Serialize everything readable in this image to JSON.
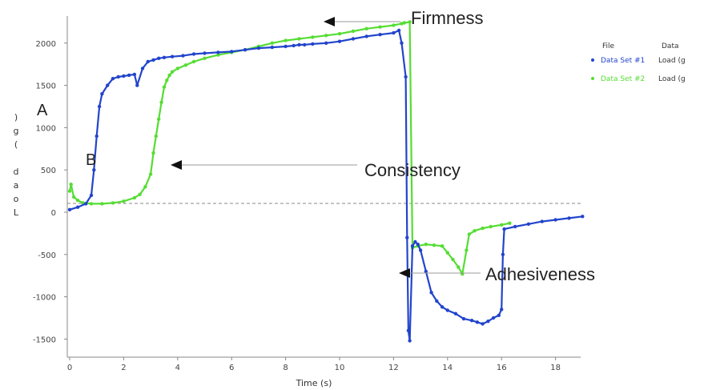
{
  "chart_data": {
    "type": "line",
    "xlabel": "Time (s)",
    "ylabel": "Load (g)",
    "xlim": [
      0,
      19
    ],
    "ylim": [
      -1600,
      2300
    ],
    "x_ticks": [
      0,
      2,
      4,
      6,
      8,
      10,
      12,
      14,
      16,
      18
    ],
    "y_ticks": [
      2000,
      1500,
      1000,
      500,
      0,
      -500,
      -1000,
      -1500
    ],
    "legend": {
      "placement": "top-right",
      "headers": [
        "File",
        "Data"
      ],
      "entries": [
        {
          "file": "Data Set #1",
          "data": "Load (g"
        },
        {
          "file": "Data Set #2",
          "data": "Load (g"
        }
      ]
    },
    "colors": {
      "series1": "#2244cc",
      "series2": "#55dd33",
      "annot_line": "#999999",
      "zero_line": "#888888"
    },
    "series": [
      {
        "x": [
          0.0,
          0.3,
          0.6,
          0.8,
          0.9,
          1.0,
          1.1,
          1.2,
          1.4,
          1.6,
          1.8,
          2.0,
          2.2,
          2.4,
          2.5,
          2.7,
          2.9,
          3.1,
          3.3,
          3.5,
          3.8,
          4.2,
          4.6,
          5.0,
          5.5,
          6.0,
          6.5,
          7.0,
          7.5,
          8.0,
          8.3,
          8.5,
          8.7,
          9.0,
          9.5,
          10.0,
          10.5,
          11.0,
          11.5,
          12.0,
          12.2,
          12.3,
          12.45,
          12.5,
          12.55,
          12.6,
          12.7,
          12.8,
          12.9,
          13.0,
          13.2,
          13.4,
          13.6,
          13.8,
          14.0,
          14.3,
          14.6,
          14.9,
          15.1,
          15.3,
          15.5,
          15.7,
          15.9,
          16.0,
          16.05,
          16.1,
          16.5,
          17.0,
          17.5,
          18.0,
          18.5,
          19.0
        ],
        "y": [
          30,
          60,
          100,
          200,
          500,
          900,
          1250,
          1400,
          1500,
          1580,
          1600,
          1610,
          1620,
          1630,
          1500,
          1700,
          1780,
          1800,
          1820,
          1830,
          1840,
          1850,
          1870,
          1880,
          1890,
          1900,
          1920,
          1940,
          1950,
          1960,
          1970,
          1980,
          1980,
          1990,
          2000,
          2020,
          2050,
          2080,
          2100,
          2120,
          2150,
          2000,
          1600,
          -300,
          -1400,
          -1520,
          -400,
          -350,
          -380,
          -450,
          -700,
          -950,
          -1050,
          -1120,
          -1160,
          -1200,
          -1260,
          -1280,
          -1300,
          -1320,
          -1290,
          -1250,
          -1220,
          -1150,
          -500,
          -200,
          -170,
          -140,
          -110,
          -90,
          -70,
          -50
        ]
      },
      {
        "x": [
          0.0,
          0.05,
          0.15,
          0.3,
          0.5,
          0.8,
          1.2,
          1.6,
          2.0,
          2.4,
          2.6,
          2.8,
          3.0,
          3.1,
          3.2,
          3.3,
          3.4,
          3.5,
          3.6,
          3.7,
          3.8,
          4.0,
          4.3,
          4.6,
          5.0,
          5.5,
          6.0,
          6.5,
          7.0,
          7.5,
          8.0,
          8.5,
          9.0,
          9.5,
          10.0,
          10.5,
          11.0,
          11.5,
          12.0,
          12.3,
          12.4,
          12.6,
          12.7,
          12.9,
          13.2,
          13.5,
          13.8,
          14.0,
          14.2,
          14.4,
          14.55,
          14.7,
          14.8,
          15.0,
          15.3,
          15.6,
          16.0,
          16.3
        ],
        "y": [
          250,
          330,
          180,
          140,
          110,
          100,
          100,
          110,
          130,
          170,
          210,
          300,
          450,
          700,
          900,
          1100,
          1300,
          1480,
          1560,
          1620,
          1660,
          1700,
          1740,
          1780,
          1820,
          1860,
          1890,
          1920,
          1960,
          2000,
          2030,
          2050,
          2070,
          2090,
          2110,
          2140,
          2170,
          2190,
          2210,
          2230,
          2240,
          2250,
          -420,
          -400,
          -380,
          -390,
          -400,
          -480,
          -560,
          -650,
          -730,
          -450,
          -260,
          -220,
          -190,
          -170,
          -150,
          -130
        ]
      }
    ],
    "annotations": [
      {
        "label": "Firmness",
        "x": 11.5,
        "y": 2220
      },
      {
        "label": "Consistency",
        "x": 3.7,
        "y": 500
      },
      {
        "label": "Adhesiveness",
        "x": 12.5,
        "y": -680
      },
      {
        "label": "A",
        "x": -1.0,
        "y": 1130
      },
      {
        "label": "B",
        "x": 0.6,
        "y": 560
      }
    ]
  }
}
